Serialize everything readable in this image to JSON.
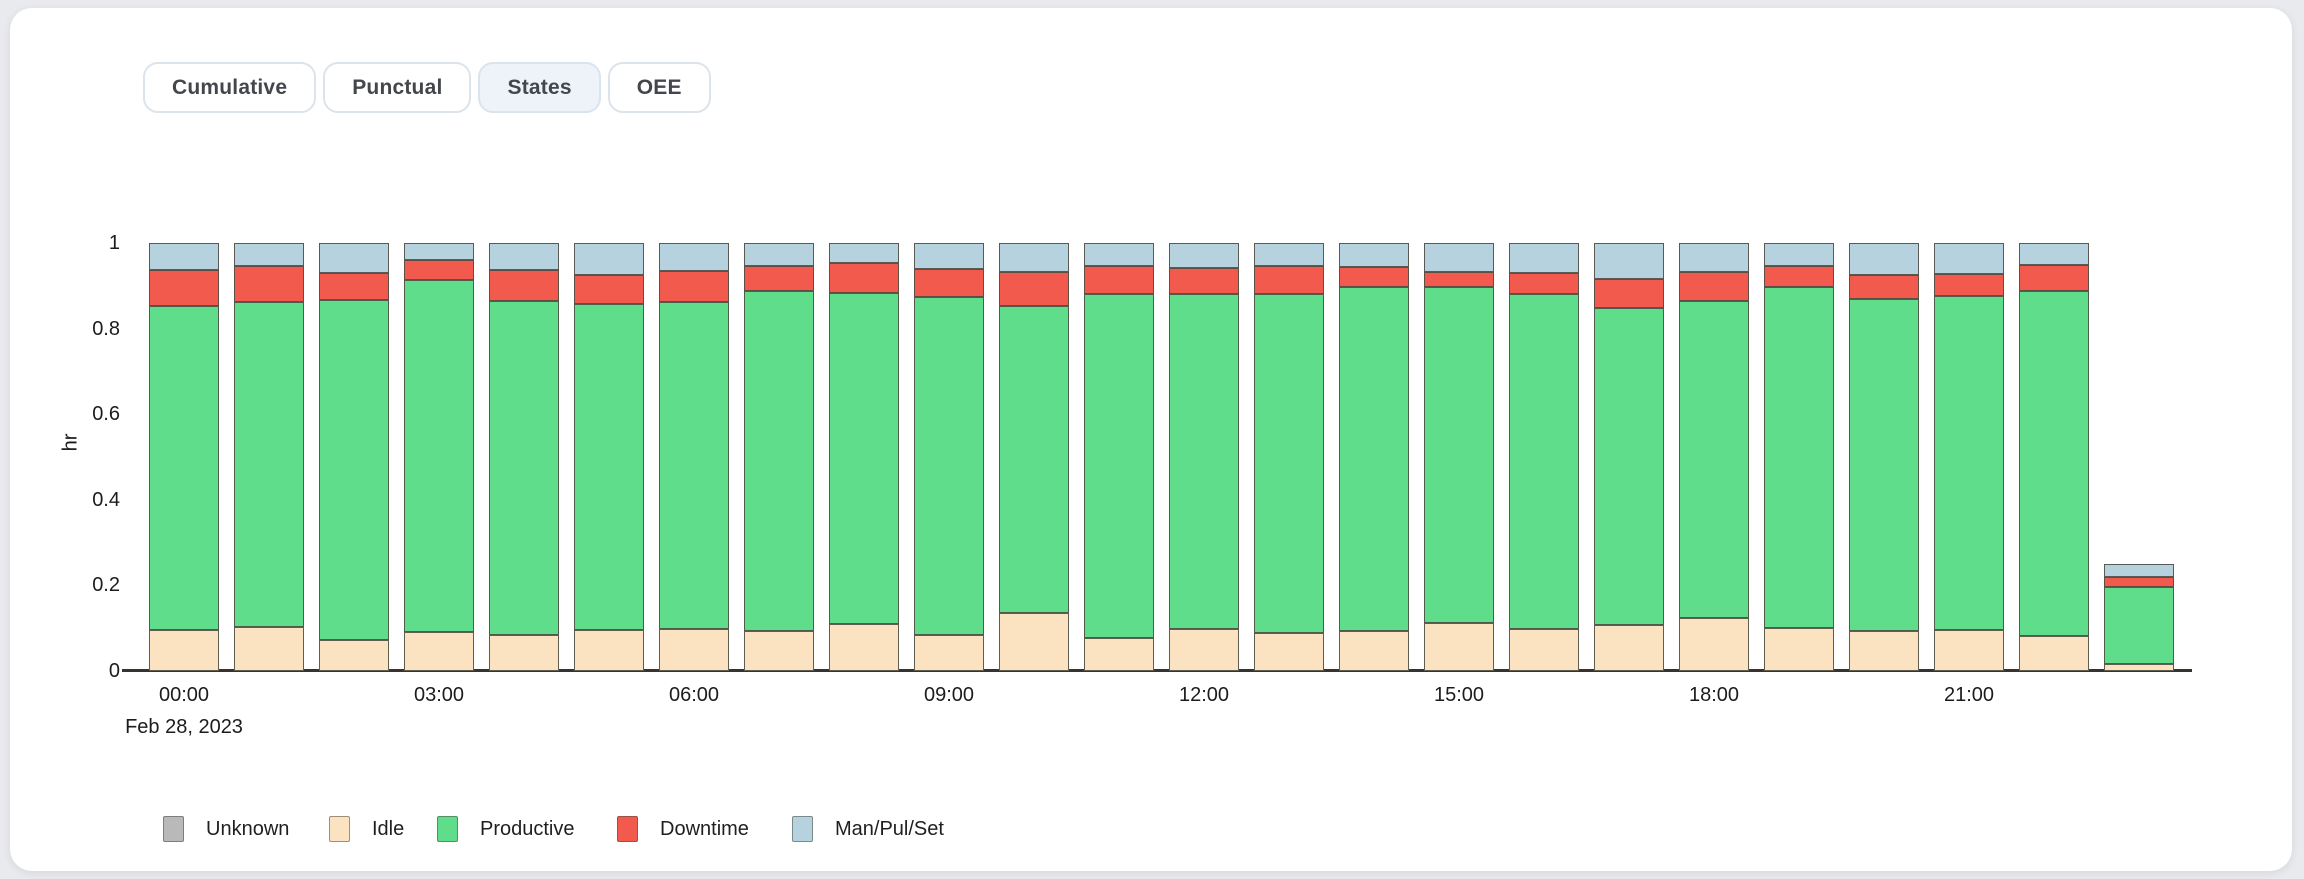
{
  "page": {
    "background_color": "#e9eaee",
    "card_color": "#ffffff"
  },
  "tabs": [
    {
      "label": "Cumulative",
      "active": false
    },
    {
      "label": "Punctual",
      "active": false
    },
    {
      "label": "States",
      "active": true
    },
    {
      "label": "OEE",
      "active": false
    }
  ],
  "chart_data": {
    "type": "bar",
    "stacked": true,
    "title": "",
    "xlabel": "",
    "ylabel": "hr",
    "ylim": [
      0,
      1
    ],
    "grid": false,
    "legend_position": "bottom",
    "y_ticks": [
      "0",
      "0.2",
      "0.4",
      "0.6",
      "0.8",
      "1"
    ],
    "x_tick_labels": [
      "00:00",
      "03:00",
      "06:00",
      "09:00",
      "12:00",
      "15:00",
      "18:00",
      "21:00"
    ],
    "x_date_label": "Feb 28, 2023",
    "categories": [
      "00:00",
      "01:00",
      "02:00",
      "03:00",
      "04:00",
      "05:00",
      "06:00",
      "07:00",
      "08:00",
      "09:00",
      "10:00",
      "11:00",
      "12:00",
      "13:00",
      "14:00",
      "15:00",
      "16:00",
      "17:00",
      "18:00",
      "19:00",
      "20:00",
      "21:00",
      "22:00",
      "23:00"
    ],
    "series": [
      {
        "name": "Unknown",
        "color": "#b9b9b9",
        "values": [
          0,
          0,
          0,
          0,
          0,
          0,
          0,
          0,
          0,
          0,
          0,
          0,
          0,
          0,
          0,
          0,
          0,
          0,
          0,
          0,
          0,
          0,
          0,
          0
        ]
      },
      {
        "name": "Idle",
        "color": "#fbe3c2",
        "values": [
          0.096,
          0.103,
          0.072,
          0.091,
          0.084,
          0.096,
          0.098,
          0.093,
          0.11,
          0.085,
          0.135,
          0.078,
          0.098,
          0.089,
          0.093,
          0.112,
          0.098,
          0.107,
          0.124,
          0.1,
          0.093,
          0.096,
          0.082,
          0.016
        ]
      },
      {
        "name": "Productive",
        "color": "#5fdd8b",
        "values": [
          0.757,
          0.759,
          0.795,
          0.822,
          0.781,
          0.761,
          0.765,
          0.795,
          0.773,
          0.789,
          0.718,
          0.803,
          0.783,
          0.792,
          0.804,
          0.785,
          0.783,
          0.741,
          0.74,
          0.797,
          0.776,
          0.781,
          0.806,
          0.18
        ]
      },
      {
        "name": "Downtime",
        "color": "#f25a4e",
        "values": [
          0.084,
          0.084,
          0.063,
          0.047,
          0.072,
          0.068,
          0.072,
          0.058,
          0.07,
          0.065,
          0.079,
          0.065,
          0.061,
          0.065,
          0.047,
          0.035,
          0.049,
          0.068,
          0.068,
          0.049,
          0.056,
          0.051,
          0.061,
          0.024
        ]
      },
      {
        "name": "Man/Pul/Set",
        "color": "#b6d2de",
        "values": [
          0.063,
          0.054,
          0.07,
          0.04,
          0.063,
          0.075,
          0.065,
          0.054,
          0.047,
          0.061,
          0.068,
          0.054,
          0.058,
          0.054,
          0.056,
          0.068,
          0.07,
          0.084,
          0.068,
          0.054,
          0.075,
          0.072,
          0.051,
          0.03
        ]
      }
    ]
  }
}
